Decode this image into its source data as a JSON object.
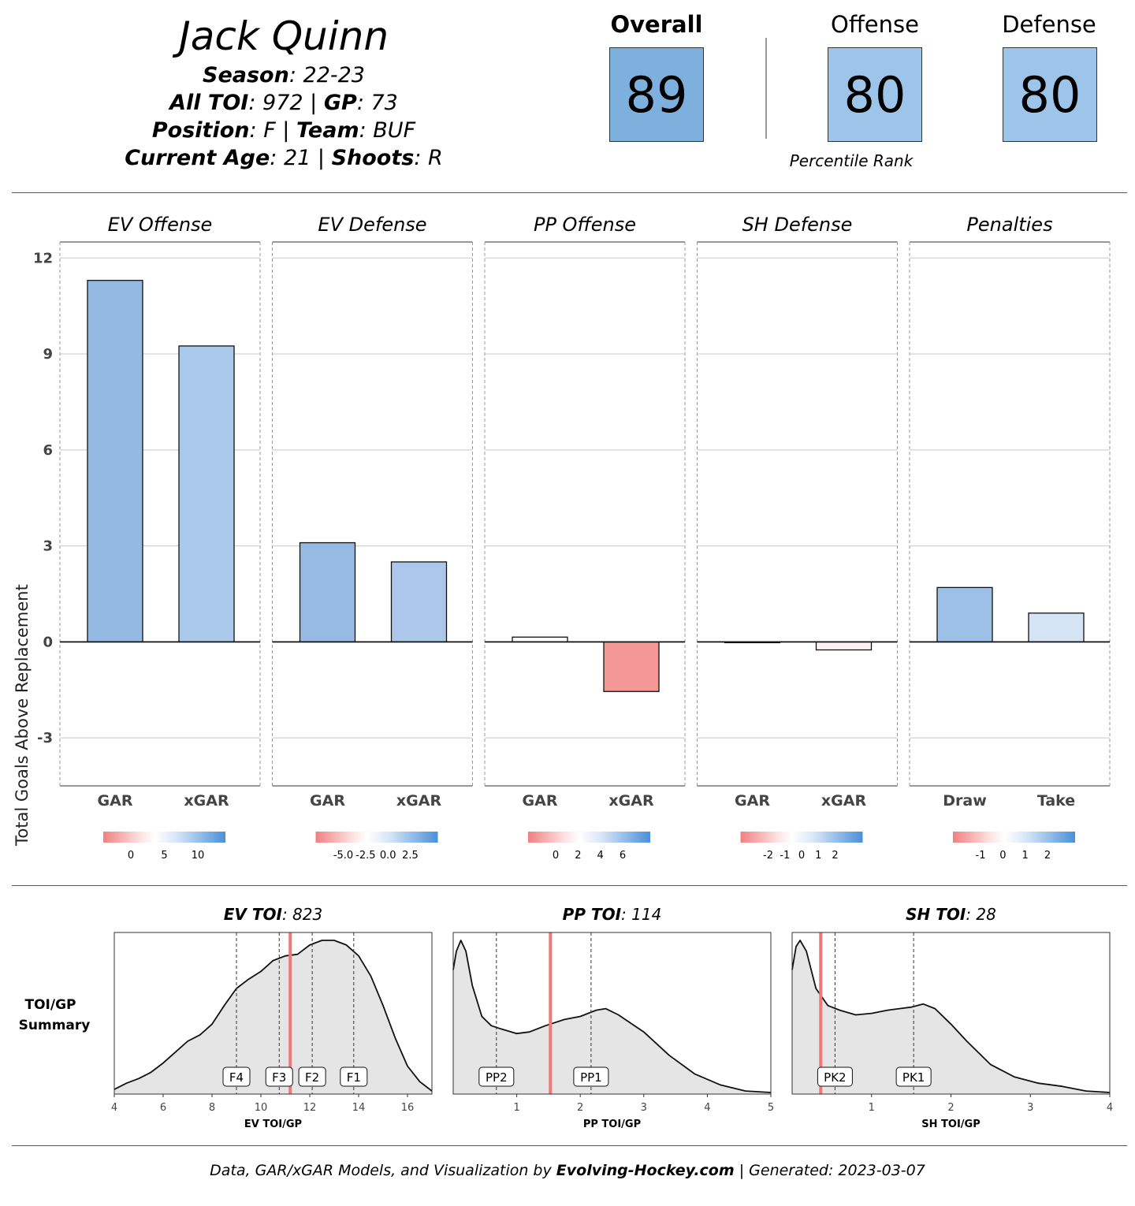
{
  "player": {
    "name": "Jack Quinn",
    "season_label": "Season",
    "season": "22-23",
    "toi_label": "All TOI",
    "toi": "972",
    "gp_label": "GP",
    "gp": "73",
    "position_label": "Position",
    "position": "F",
    "team_label": "Team",
    "team": "BUF",
    "age_label": "Current Age",
    "age": "21",
    "shoots_label": "Shoots",
    "shoots": "R"
  },
  "ranks": {
    "overall_label": "Overall",
    "overall": "89",
    "overall_color": "#7eb0de",
    "offense_label": "Offense",
    "offense": "80",
    "offense_color": "#9dc5e9",
    "defense_label": "Defense",
    "defense": "80",
    "defense_color": "#9dc5e9",
    "caption": "Percentile Rank"
  },
  "chart_data": [
    {
      "type": "bar",
      "ylabel": "Total Goals Above Replacement",
      "ylim": [
        -4.5,
        12.5
      ],
      "yticks": [
        -3,
        0,
        3,
        6,
        9,
        12
      ],
      "panels": [
        {
          "title": "EV Offense",
          "categories": [
            "GAR",
            "xGAR"
          ],
          "values": [
            11.3,
            9.25
          ],
          "colors": [
            "#94bae4",
            "#aac8ea"
          ],
          "legend_ticks": [
            "0",
            "5",
            "10"
          ]
        },
        {
          "title": "EV Defense",
          "categories": [
            "GAR",
            "xGAR"
          ],
          "values": [
            3.1,
            2.5
          ],
          "colors": [
            "#96bae4",
            "#abc8ea"
          ],
          "legend_ticks": [
            "-5.0",
            "-2.5",
            "0.0",
            "2.5"
          ]
        },
        {
          "title": "PP Offense",
          "categories": [
            "GAR",
            "xGAR"
          ],
          "values": [
            0.15,
            -1.55
          ],
          "colors": [
            "#fdfdff",
            "#f49896"
          ],
          "legend_ticks": [
            "0",
            "2",
            "4",
            "6"
          ]
        },
        {
          "title": "SH Defense",
          "categories": [
            "GAR",
            "xGAR"
          ],
          "values": [
            -0.02,
            -0.25
          ],
          "colors": [
            "#ffffff",
            "#fdf0f0"
          ],
          "legend_ticks": [
            "-2",
            "-1",
            "0",
            "1",
            "2"
          ]
        },
        {
          "title": "Penalties",
          "categories": [
            "Draw",
            "Take"
          ],
          "values": [
            1.7,
            0.9
          ],
          "colors": [
            "#9cc0e6",
            "#d5e4f5"
          ],
          "legend_ticks": [
            "-1",
            "0",
            "1",
            "2"
          ]
        }
      ]
    },
    {
      "type": "area",
      "title": "TOI/GP Summary",
      "panels": [
        {
          "title_label": "EV TOI",
          "title_value": "823",
          "xlabel": "EV TOI/GP",
          "xlim": [
            4,
            17
          ],
          "xticks": [
            4,
            6,
            8,
            10,
            12,
            14,
            16
          ],
          "player_value": 11.2,
          "markers": [
            {
              "label": "F4",
              "x": 9.0
            },
            {
              "label": "F3",
              "x": 10.75
            },
            {
              "label": "F2",
              "x": 12.1
            },
            {
              "label": "F1",
              "x": 13.8
            }
          ],
          "density": [
            [
              4,
              0.03
            ],
            [
              4.5,
              0.07
            ],
            [
              5,
              0.1
            ],
            [
              5.5,
              0.14
            ],
            [
              6,
              0.2
            ],
            [
              6.5,
              0.27
            ],
            [
              7,
              0.34
            ],
            [
              7.5,
              0.38
            ],
            [
              8,
              0.45
            ],
            [
              8.5,
              0.57
            ],
            [
              9,
              0.68
            ],
            [
              9.5,
              0.74
            ],
            [
              10,
              0.79
            ],
            [
              10.5,
              0.86
            ],
            [
              11,
              0.89
            ],
            [
              11.5,
              0.9
            ],
            [
              12,
              0.96
            ],
            [
              12.5,
              0.99
            ],
            [
              13,
              0.99
            ],
            [
              13.5,
              0.96
            ],
            [
              14,
              0.89
            ],
            [
              14.5,
              0.76
            ],
            [
              15,
              0.57
            ],
            [
              15.5,
              0.36
            ],
            [
              16,
              0.18
            ],
            [
              16.5,
              0.08
            ],
            [
              17,
              0.02
            ]
          ]
        },
        {
          "title_label": "PP TOI",
          "title_value": "114",
          "xlabel": "PP TOI/GP",
          "xlim": [
            0,
            5
          ],
          "xticks": [
            1,
            2,
            3,
            4,
            5
          ],
          "player_value": 1.53,
          "markers": [
            {
              "label": "PP2",
              "x": 0.68
            },
            {
              "label": "PP1",
              "x": 2.17
            }
          ],
          "density": [
            [
              0,
              0.8
            ],
            [
              0.05,
              0.92
            ],
            [
              0.12,
              0.99
            ],
            [
              0.2,
              0.92
            ],
            [
              0.3,
              0.7
            ],
            [
              0.45,
              0.5
            ],
            [
              0.6,
              0.44
            ],
            [
              0.75,
              0.42
            ],
            [
              1.0,
              0.39
            ],
            [
              1.2,
              0.4
            ],
            [
              1.45,
              0.44
            ],
            [
              1.75,
              0.48
            ],
            [
              2.0,
              0.5
            ],
            [
              2.25,
              0.54
            ],
            [
              2.4,
              0.55
            ],
            [
              2.6,
              0.51
            ],
            [
              3.0,
              0.4
            ],
            [
              3.4,
              0.25
            ],
            [
              3.8,
              0.13
            ],
            [
              4.2,
              0.06
            ],
            [
              4.6,
              0.02
            ],
            [
              5,
              0.01
            ]
          ]
        },
        {
          "title_label": "SH TOI",
          "title_value": "28",
          "xlabel": "SH TOI/GP",
          "xlim": [
            0,
            4
          ],
          "xticks": [
            1,
            2,
            3,
            4
          ],
          "player_value": 0.36,
          "markers": [
            {
              "label": "PK2",
              "x": 0.54
            },
            {
              "label": "PK1",
              "x": 1.53
            }
          ],
          "density": [
            [
              0,
              0.8
            ],
            [
              0.05,
              0.95
            ],
            [
              0.1,
              0.99
            ],
            [
              0.18,
              0.92
            ],
            [
              0.3,
              0.68
            ],
            [
              0.45,
              0.57
            ],
            [
              0.6,
              0.54
            ],
            [
              0.8,
              0.51
            ],
            [
              1.0,
              0.52
            ],
            [
              1.2,
              0.54
            ],
            [
              1.5,
              0.56
            ],
            [
              1.65,
              0.58
            ],
            [
              1.8,
              0.55
            ],
            [
              2.0,
              0.45
            ],
            [
              2.2,
              0.34
            ],
            [
              2.5,
              0.19
            ],
            [
              2.8,
              0.11
            ],
            [
              3.1,
              0.07
            ],
            [
              3.4,
              0.05
            ],
            [
              3.7,
              0.02
            ],
            [
              4,
              0.01
            ]
          ]
        }
      ]
    }
  ],
  "footer": {
    "prefix": "Data, GAR/xGAR  Models, and Visualization by ",
    "site": "Evolving-Hockey.com",
    "suffix": " | Generated: 2023-03-07"
  }
}
